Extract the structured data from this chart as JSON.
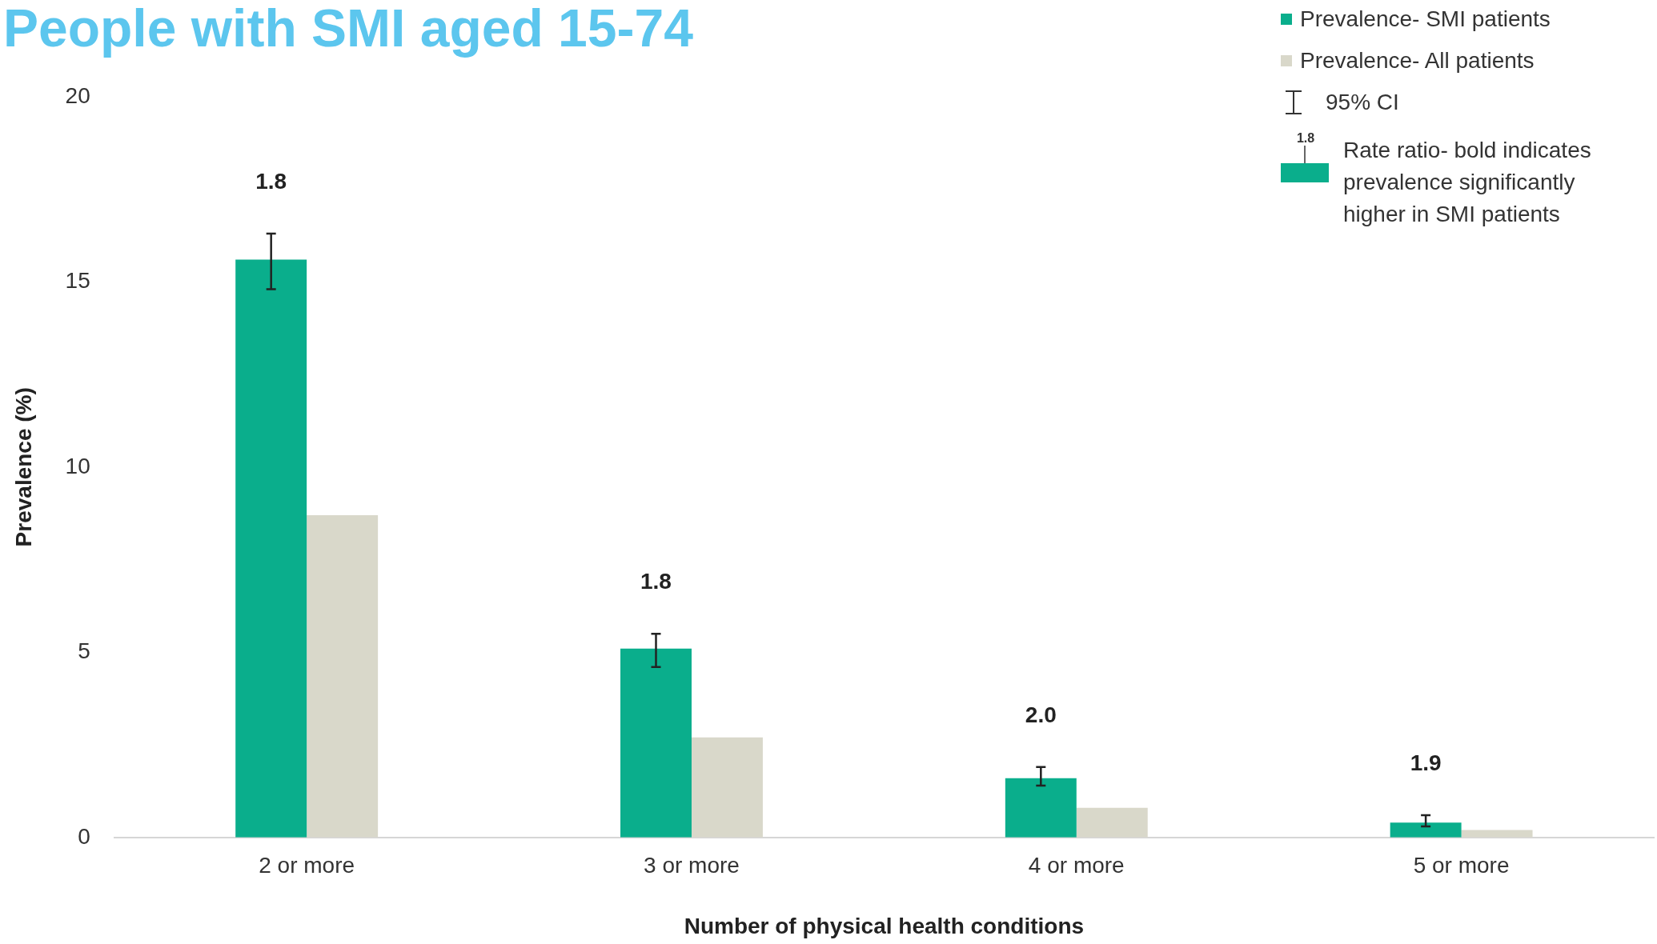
{
  "chart_data": {
    "type": "bar",
    "title": "People with SMI aged 15-74",
    "xlabel": "Number of physical health conditions",
    "ylabel": "Prevalence (%)",
    "categories": [
      "2 or more",
      "3 or more",
      "4 or more",
      "5 or more"
    ],
    "series": [
      {
        "name": "Prevalence- SMI patients",
        "color": "#0aae8c",
        "values": [
          15.6,
          5.1,
          1.6,
          0.4
        ],
        "errors": [
          [
            14.8,
            16.3
          ],
          [
            4.6,
            5.5
          ],
          [
            1.4,
            1.9
          ],
          [
            0.3,
            0.6
          ]
        ]
      },
      {
        "name": "Prevalence- All patients",
        "color": "#d9d8ca",
        "values": [
          8.7,
          2.7,
          0.8,
          0.2
        ]
      }
    ],
    "ylim": [
      0,
      20
    ],
    "yticks": [
      0,
      5,
      10,
      15,
      20
    ],
    "grid": false,
    "legend": "top right",
    "annotations": [
      "1.8",
      "1.8",
      "2.0",
      "1.9",
      "95% CI",
      "1.8",
      "Rate ratio- bold indicates prevalence significantly higher in SMI patients"
    ]
  }
}
